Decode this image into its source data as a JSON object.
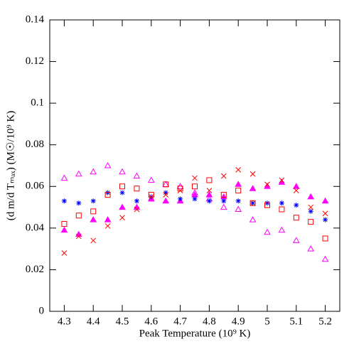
{
  "chart_data": {
    "type": "scatter",
    "x_label": "Peak Temperature (10⁹ K)",
    "y_label": "(d m/d Tₘₐₓ) (M☉/10⁹ K)",
    "x": [
      4.3,
      4.35,
      4.4,
      4.45,
      4.5,
      4.55,
      4.6,
      4.65,
      4.7,
      4.75,
      4.8,
      4.85,
      4.9,
      4.95,
      5.0,
      5.05,
      5.1,
      5.15,
      5.2
    ],
    "series": [
      {
        "color": "#ff00ff",
        "marker": "triangle-open",
        "values": [
          0.064,
          0.066,
          0.067,
          0.07,
          0.067,
          0.065,
          0.063,
          0.061,
          0.06,
          0.057,
          0.054,
          0.05,
          0.049,
          0.044,
          0.038,
          0.039,
          0.034,
          0.03,
          0.025
        ]
      },
      {
        "color": "#ff00ff",
        "marker": "triangle-filled",
        "values": [
          0.039,
          0.037,
          0.044,
          0.044,
          0.05,
          0.05,
          0.054,
          0.053,
          0.053,
          0.056,
          0.056,
          0.055,
          0.061,
          0.059,
          0.06,
          0.062,
          0.06,
          0.055,
          0.053
        ]
      },
      {
        "color": "#0000ff",
        "marker": "asterisk",
        "values": [
          0.053,
          0.052,
          0.053,
          0.057,
          0.057,
          0.053,
          0.055,
          0.057,
          0.054,
          0.054,
          0.053,
          0.053,
          0.053,
          0.052,
          0.052,
          0.052,
          0.051,
          0.048,
          0.044
        ]
      },
      {
        "color": "#ff0000",
        "marker": "square-open",
        "values": [
          0.042,
          0.046,
          0.048,
          0.056,
          0.06,
          0.059,
          0.056,
          0.061,
          0.059,
          0.06,
          0.063,
          0.056,
          0.058,
          0.052,
          0.051,
          0.049,
          0.045,
          0.043,
          0.035
        ]
      },
      {
        "color": "#ff0000",
        "marker": "cross",
        "values": [
          0.028,
          0.036,
          0.034,
          0.041,
          0.045,
          0.049,
          0.055,
          0.056,
          0.058,
          0.064,
          0.058,
          0.065,
          0.068,
          0.066,
          0.061,
          0.063,
          0.058,
          0.05,
          0.047
        ]
      }
    ],
    "xlim": [
      4.25,
      5.25
    ],
    "ylim": [
      0,
      0.14
    ],
    "xticks": [
      4.3,
      4.4,
      4.5,
      4.6,
      4.7,
      4.8,
      4.9,
      5,
      5.1,
      5.2
    ],
    "yticks": [
      0,
      0.02,
      0.04,
      0.06,
      0.08,
      0.1,
      0.12,
      0.14
    ]
  }
}
